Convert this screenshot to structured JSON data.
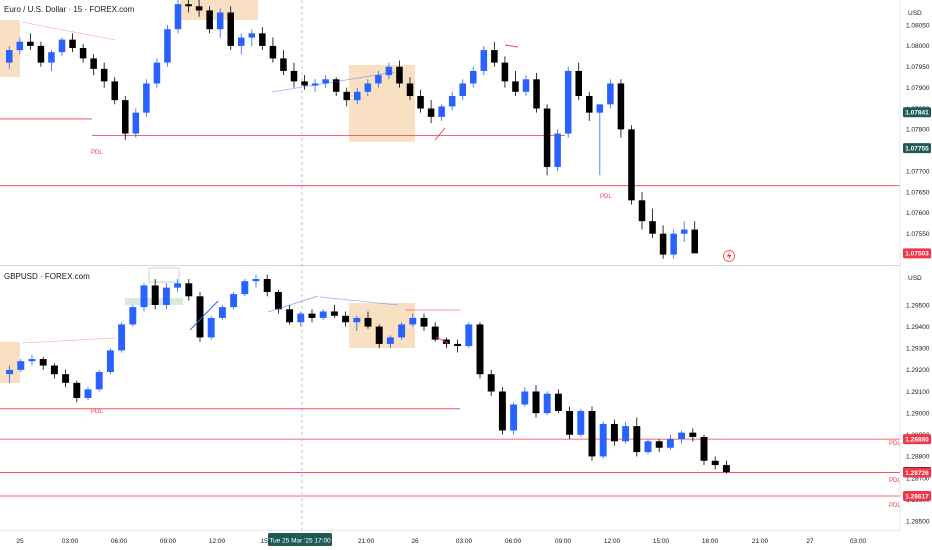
{
  "chart_data": [
    {
      "type": "candlestick",
      "title": "Euro / U.S. Dollar · 15 · FOREX.com",
      "currency": "USD",
      "ylim": [
        1.07475,
        1.0811
      ],
      "yticks": [
        "1.08050",
        "1.08000",
        "1.07950",
        "1.07900",
        "1.07850",
        "1.07800",
        "1.07750",
        "1.07700",
        "1.07650",
        "1.07600",
        "1.07550"
      ],
      "price_badges": [
        {
          "value": "1.07841",
          "color": "#1e5b57"
        },
        {
          "value": "1.07755",
          "color": "#1e5b57"
        },
        {
          "value": "1.07503",
          "color": "#f23645"
        }
      ],
      "horizontal_lines": [
        1.07825,
        1.07785,
        1.07665
      ],
      "annotations": [
        "PDL",
        "PDL"
      ],
      "ohlc": [
        [
          1.0796,
          1.08,
          1.07945,
          1.0799
        ],
        [
          1.0799,
          1.0802,
          1.0798,
          1.0801
        ],
        [
          1.0801,
          1.0803,
          1.0799,
          1.08
        ],
        [
          1.08,
          1.0801,
          1.0795,
          1.0796
        ],
        [
          1.0796,
          1.0799,
          1.0794,
          1.07985
        ],
        [
          1.07985,
          1.0802,
          1.07975,
          1.08015
        ],
        [
          1.08015,
          1.0803,
          1.07985,
          1.07995
        ],
        [
          1.07995,
          1.08005,
          1.0796,
          1.0797
        ],
        [
          1.0797,
          1.0798,
          1.0793,
          1.07945
        ],
        [
          1.07945,
          1.0796,
          1.079,
          1.07915
        ],
        [
          1.07915,
          1.07925,
          1.0786,
          1.0787
        ],
        [
          1.0787,
          1.0788,
          1.07775,
          1.0779
        ],
        [
          1.0779,
          1.0785,
          1.0778,
          1.0784
        ],
        [
          1.0784,
          1.0792,
          1.0783,
          1.0791
        ],
        [
          1.0791,
          1.0797,
          1.079,
          1.0796
        ],
        [
          1.0796,
          1.0805,
          1.0795,
          1.0804
        ],
        [
          1.0804,
          1.0811,
          1.0803,
          1.081
        ],
        [
          1.081,
          1.08115,
          1.0808,
          1.08095
        ],
        [
          1.08095,
          1.0811,
          1.0807,
          1.08085
        ],
        [
          1.08085,
          1.08095,
          1.0803,
          1.0804
        ],
        [
          1.0804,
          1.0809,
          1.0802,
          1.0808
        ],
        [
          1.0808,
          1.08095,
          1.0799,
          1.08
        ],
        [
          1.08,
          1.0803,
          1.0798,
          1.0802
        ],
        [
          1.0802,
          1.0804,
          1.08,
          1.0803
        ],
        [
          1.0803,
          1.08045,
          1.0799,
          1.08
        ],
        [
          1.08,
          1.0802,
          1.0796,
          1.0797
        ],
        [
          1.0797,
          1.0799,
          1.0793,
          1.0794
        ],
        [
          1.0794,
          1.0796,
          1.079,
          1.07915
        ],
        [
          1.07915,
          1.0793,
          1.07895,
          1.07905
        ],
        [
          1.07905,
          1.0792,
          1.0789,
          1.0791
        ],
        [
          1.0791,
          1.0793,
          1.079,
          1.0792
        ],
        [
          1.0792,
          1.07925,
          1.0788,
          1.0789
        ],
        [
          1.0789,
          1.079,
          1.07855,
          1.0787
        ],
        [
          1.0787,
          1.079,
          1.0786,
          1.0789
        ],
        [
          1.0789,
          1.0792,
          1.0788,
          1.0791
        ],
        [
          1.0791,
          1.0794,
          1.079,
          1.0793
        ],
        [
          1.0793,
          1.0796,
          1.0792,
          1.0795
        ],
        [
          1.0795,
          1.07965,
          1.079,
          1.0791
        ],
        [
          1.0791,
          1.07925,
          1.0787,
          1.0788
        ],
        [
          1.0788,
          1.07895,
          1.0784,
          1.0785
        ],
        [
          1.0785,
          1.0787,
          1.07815,
          1.0783
        ],
        [
          1.0783,
          1.0786,
          1.0782,
          1.07855
        ],
        [
          1.07855,
          1.0789,
          1.07845,
          1.0788
        ],
        [
          1.0788,
          1.0792,
          1.0787,
          1.0791
        ],
        [
          1.0791,
          1.0795,
          1.079,
          1.0794
        ],
        [
          1.0794,
          1.08,
          1.0793,
          1.0799
        ],
        [
          1.0799,
          1.0801,
          1.0795,
          1.0796
        ],
        [
          1.0796,
          1.07975,
          1.079,
          1.07915
        ],
        [
          1.07915,
          1.0794,
          1.0788,
          1.0789
        ],
        [
          1.0789,
          1.0793,
          1.0788,
          1.0792
        ],
        [
          1.0792,
          1.07935,
          1.0784,
          1.0785
        ],
        [
          1.0785,
          1.0786,
          1.0769,
          1.0771
        ],
        [
          1.0771,
          1.078,
          1.077,
          1.0779
        ],
        [
          1.0779,
          1.0795,
          1.0778,
          1.0794
        ],
        [
          1.0794,
          1.0796,
          1.0787,
          1.0788
        ],
        [
          1.0788,
          1.0789,
          1.0782,
          1.0784
        ],
        [
          1.0784,
          1.0786,
          1.0769,
          1.0786
        ],
        [
          1.0786,
          1.0792,
          1.0785,
          1.0791
        ],
        [
          1.0791,
          1.0792,
          1.0778,
          1.078
        ],
        [
          1.078,
          1.0781,
          1.0762,
          1.0763
        ],
        [
          1.0763,
          1.0765,
          1.0756,
          1.0758
        ],
        [
          1.0758,
          1.0761,
          1.0754,
          1.0755
        ],
        [
          1.0755,
          1.0757,
          1.0749,
          1.075
        ],
        [
          1.075,
          1.0756,
          1.0749,
          1.0755
        ],
        [
          1.0755,
          1.0758,
          1.0753,
          1.0756
        ],
        [
          1.0756,
          1.0758,
          1.07503,
          1.07503
        ]
      ]
    },
    {
      "type": "candlestick",
      "title": "GBPUSD · FOREX.com",
      "currency": "USD",
      "ylim": [
        1.2846,
        1.2968
      ],
      "yticks": [
        "1.29500",
        "1.29400",
        "1.29300",
        "1.29200",
        "1.29100",
        "1.29000",
        "1.28900",
        "1.28800",
        "1.28700",
        "1.28600",
        "1.28500"
      ],
      "price_badges": [
        {
          "value": "1.28880",
          "color": "#f23645"
        },
        {
          "value": "1.28728",
          "color": "#131722"
        },
        {
          "value": "1.28726",
          "color": "#f23645"
        },
        {
          "value": "1.28617",
          "color": "#f23645"
        }
      ],
      "horizontal_lines": [
        1.2902,
        1.2888,
        1.28726,
        1.28617
      ],
      "annotations": [
        "PDL",
        "PDL",
        "PDL",
        "PDL"
      ],
      "ohlc": [
        [
          1.2918,
          1.2922,
          1.2914,
          1.292
        ],
        [
          1.292,
          1.2925,
          1.2919,
          1.2924
        ],
        [
          1.2924,
          1.2927,
          1.2922,
          1.2925
        ],
        [
          1.2925,
          1.2926,
          1.292,
          1.2922
        ],
        [
          1.2922,
          1.2923,
          1.2916,
          1.2918
        ],
        [
          1.2918,
          1.292,
          1.2912,
          1.2914
        ],
        [
          1.2914,
          1.2915,
          1.2905,
          1.2907
        ],
        [
          1.2907,
          1.2912,
          1.2906,
          1.2911
        ],
        [
          1.2911,
          1.292,
          1.291,
          1.2919
        ],
        [
          1.2919,
          1.293,
          1.2918,
          1.2929
        ],
        [
          1.2929,
          1.2942,
          1.2928,
          1.2941
        ],
        [
          1.2941,
          1.295,
          1.294,
          1.2949
        ],
        [
          1.2949,
          1.296,
          1.2947,
          1.2959
        ],
        [
          1.2959,
          1.2962,
          1.2948,
          1.295
        ],
        [
          1.295,
          1.296,
          1.2948,
          1.2958
        ],
        [
          1.2958,
          1.2962,
          1.2956,
          1.296
        ],
        [
          1.296,
          1.2962,
          1.2952,
          1.2954
        ],
        [
          1.2954,
          1.2956,
          1.2933,
          1.2935
        ],
        [
          1.2935,
          1.2945,
          1.2934,
          1.2944
        ],
        [
          1.2944,
          1.295,
          1.2943,
          1.2949
        ],
        [
          1.2949,
          1.2956,
          1.2948,
          1.2955
        ],
        [
          1.2955,
          1.2962,
          1.2954,
          1.2961
        ],
        [
          1.2961,
          1.2964,
          1.2958,
          1.2962
        ],
        [
          1.2962,
          1.2964,
          1.2954,
          1.2956
        ],
        [
          1.2956,
          1.2957,
          1.2946,
          1.2948
        ],
        [
          1.2948,
          1.295,
          1.2941,
          1.2942
        ],
        [
          1.2942,
          1.2947,
          1.294,
          1.2946
        ],
        [
          1.2946,
          1.2948,
          1.2942,
          1.2944
        ],
        [
          1.2944,
          1.2948,
          1.2943,
          1.2947
        ],
        [
          1.2947,
          1.295,
          1.2944,
          1.2945
        ],
        [
          1.2945,
          1.2947,
          1.294,
          1.2942
        ],
        [
          1.2942,
          1.2945,
          1.2938,
          1.2944
        ],
        [
          1.2944,
          1.2947,
          1.2939,
          1.294
        ],
        [
          1.294,
          1.2941,
          1.293,
          1.2932
        ],
        [
          1.2932,
          1.2936,
          1.293,
          1.2935
        ],
        [
          1.2935,
          1.2942,
          1.2934,
          1.2941
        ],
        [
          1.2941,
          1.2946,
          1.294,
          1.2944
        ],
        [
          1.2944,
          1.2946,
          1.2938,
          1.294
        ],
        [
          1.294,
          1.2942,
          1.2933,
          1.2934
        ],
        [
          1.2934,
          1.2935,
          1.293,
          1.2932
        ],
        [
          1.2932,
          1.2934,
          1.2928,
          1.2931
        ],
        [
          1.2931,
          1.2942,
          1.293,
          1.2941
        ],
        [
          1.2941,
          1.2942,
          1.2916,
          1.2918
        ],
        [
          1.2918,
          1.292,
          1.2908,
          1.291
        ],
        [
          1.291,
          1.2912,
          1.289,
          1.2892
        ],
        [
          1.2892,
          1.2905,
          1.289,
          1.2904
        ],
        [
          1.2904,
          1.2912,
          1.2903,
          1.291
        ],
        [
          1.291,
          1.2913,
          1.2898,
          1.29
        ],
        [
          1.29,
          1.291,
          1.2899,
          1.2909
        ],
        [
          1.2909,
          1.2911,
          1.29,
          1.2901
        ],
        [
          1.2901,
          1.2903,
          1.2888,
          1.289
        ],
        [
          1.289,
          1.2902,
          1.2889,
          1.2901
        ],
        [
          1.2901,
          1.2903,
          1.2878,
          1.288
        ],
        [
          1.288,
          1.2896,
          1.2879,
          1.2895
        ],
        [
          1.2895,
          1.2897,
          1.2885,
          1.2887
        ],
        [
          1.2887,
          1.2896,
          1.2886,
          1.2894
        ],
        [
          1.2894,
          1.2898,
          1.288,
          1.2882
        ],
        [
          1.2882,
          1.2888,
          1.2881,
          1.2887
        ],
        [
          1.2887,
          1.2888,
          1.2882,
          1.2884
        ],
        [
          1.2884,
          1.289,
          1.2883,
          1.2888
        ],
        [
          1.2888,
          1.2892,
          1.2886,
          1.2891
        ],
        [
          1.2891,
          1.2893,
          1.2887,
          1.2889
        ],
        [
          1.2889,
          1.289,
          1.2876,
          1.2878
        ],
        [
          1.2878,
          1.288,
          1.2874,
          1.2876
        ],
        [
          1.2876,
          1.2878,
          1.2872,
          1.28728
        ]
      ]
    }
  ],
  "xaxis": {
    "labels": [
      "25",
      "03:00",
      "06:00",
      "09:00",
      "12:00",
      "15:",
      "21:00",
      "26",
      "03:00",
      "06:00",
      "09:00",
      "12:00",
      "15:00",
      "18:00",
      "21:00",
      "27",
      "03:00"
    ],
    "crosshair_label": "Tue 25 Mar '25   17:00"
  },
  "colors": {
    "up": "#2962ff",
    "down": "#000000",
    "pdl_line": "#f23645",
    "zone": "#f9e0c2",
    "trend": "#2962ff"
  }
}
